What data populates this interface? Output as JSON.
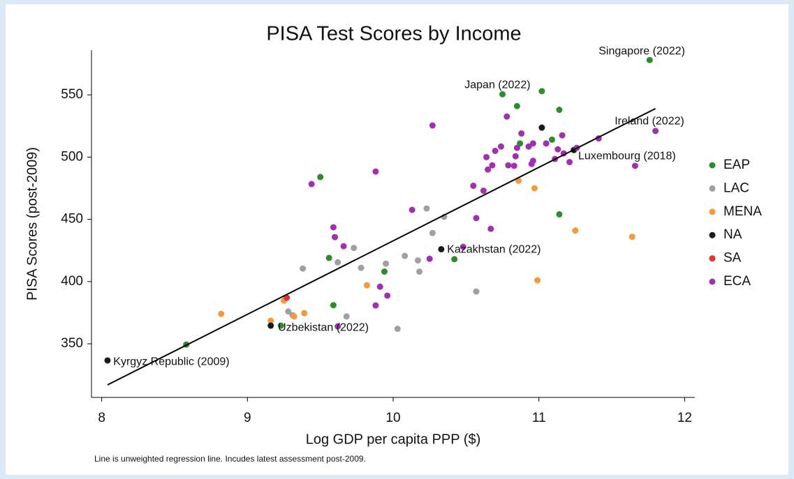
{
  "chart_data": {
    "type": "scatter",
    "title": "PISA Test Scores by Income",
    "x_label": "Log GDP per capita PPP ($)",
    "y_label": "PISA Scores (post-2009)",
    "note": "Line is unweighted regression line. Incudes latest assessment post-2009.",
    "xlim": [
      7.93,
      12.07
    ],
    "ylim": [
      306.9,
      585.9
    ],
    "xticks": [
      8,
      9,
      10,
      11,
      12
    ],
    "yticks": [
      350,
      400,
      450,
      500,
      550
    ],
    "grid": false,
    "legend": "right",
    "series": [
      {
        "name": "EAP",
        "color": "#2e8b2e",
        "x": [
          11.76,
          10.75,
          11.02,
          10.85,
          11.14,
          10.87,
          11.09,
          9.5,
          11.14,
          9.56,
          10.42,
          9.94,
          9.59,
          9.23,
          8.58
        ],
        "y": [
          578,
          550.5,
          553,
          541,
          538,
          511,
          514,
          484,
          454,
          419,
          418,
          408,
          381,
          364.6,
          349.4
        ]
      },
      {
        "name": "LAC",
        "color": "#a0a0a0",
        "x": [
          10.23,
          10.35,
          10.27,
          9.73,
          9.62,
          9.38,
          9.78,
          9.95,
          10.08,
          10.17,
          10.18,
          10.57,
          9.28,
          9.31,
          9.68,
          10.03
        ],
        "y": [
          458.7,
          452,
          439,
          427,
          415.5,
          410.5,
          411,
          414.4,
          420.6,
          417,
          408,
          392,
          376,
          373,
          372,
          362
        ]
      },
      {
        "name": "MENA",
        "color": "#f59a3c",
        "x": [
          10.86,
          10.97,
          11.25,
          11.64,
          10.99,
          9.82,
          8.82,
          9.25,
          9.39,
          9.32,
          9.16
        ],
        "y": [
          481,
          475,
          441,
          436,
          401,
          397,
          374,
          384.7,
          374.6,
          372,
          368.5
        ]
      },
      {
        "name": "NA",
        "color": "#1a1a1a",
        "x": [
          11.02,
          11.24,
          10.33,
          9.16,
          8.04
        ],
        "y": [
          523.7,
          505.7,
          426,
          364.6,
          336.6
        ]
      },
      {
        "name": "SA",
        "color": "#e83232",
        "x": [
          9.27
        ],
        "y": [
          387
        ]
      },
      {
        "name": "ECA",
        "color": "#a030b0",
        "x": [
          10.27,
          10.78,
          10.88,
          11.16,
          11.41,
          11.8,
          10.96,
          11.05,
          10.85,
          10.74,
          10.7,
          11.13,
          11.26,
          11.17,
          11.11,
          10.96,
          10.93,
          10.84,
          10.64,
          10.79,
          10.83,
          10.95,
          10.68,
          10.65,
          11.21,
          11.66,
          9.88,
          9.44,
          10.55,
          10.62,
          10.13,
          10.57,
          10.67,
          9.59,
          9.6,
          9.66,
          10.48,
          10.25,
          9.91,
          9.96,
          9.88,
          9.62
        ],
        "y": [
          525.4,
          532.6,
          519,
          517.5,
          515,
          521,
          511,
          511,
          507.4,
          508.5,
          505,
          506.3,
          507.4,
          503,
          498.5,
          497,
          508.5,
          500.7,
          500,
          493.4,
          493,
          494.5,
          493.4,
          490,
          496,
          493,
          488.4,
          478.3,
          477,
          473,
          457.6,
          451,
          442.4,
          443.6,
          435.7,
          428.4,
          427.9,
          418.3,
          395.9,
          388.7,
          380.8,
          364
        ]
      }
    ],
    "fit_line": {
      "color": "#000000",
      "x": [
        8.04,
        11.8
      ],
      "y": [
        317,
        539
      ]
    },
    "annotations": [
      {
        "text": "Singapore (2022)",
        "x": 11.41,
        "y": 585
      },
      {
        "text": "Japan (2022)",
        "x": 10.49,
        "y": 557.8
      },
      {
        "text": "Ireland (2022)",
        "x": 11.52,
        "y": 528.7
      },
      {
        "text": "Luxembourg (2018)",
        "x": 11.27,
        "y": 500.7
      },
      {
        "text": "Kazakhstan (2022)",
        "x": 10.37,
        "y": 425.6
      },
      {
        "text": "Uzbekistan (2022)",
        "x": 9.21,
        "y": 362.9
      },
      {
        "text": "Kyrgyz Republic (2009)",
        "x": 8.08,
        "y": 335.4
      }
    ]
  }
}
